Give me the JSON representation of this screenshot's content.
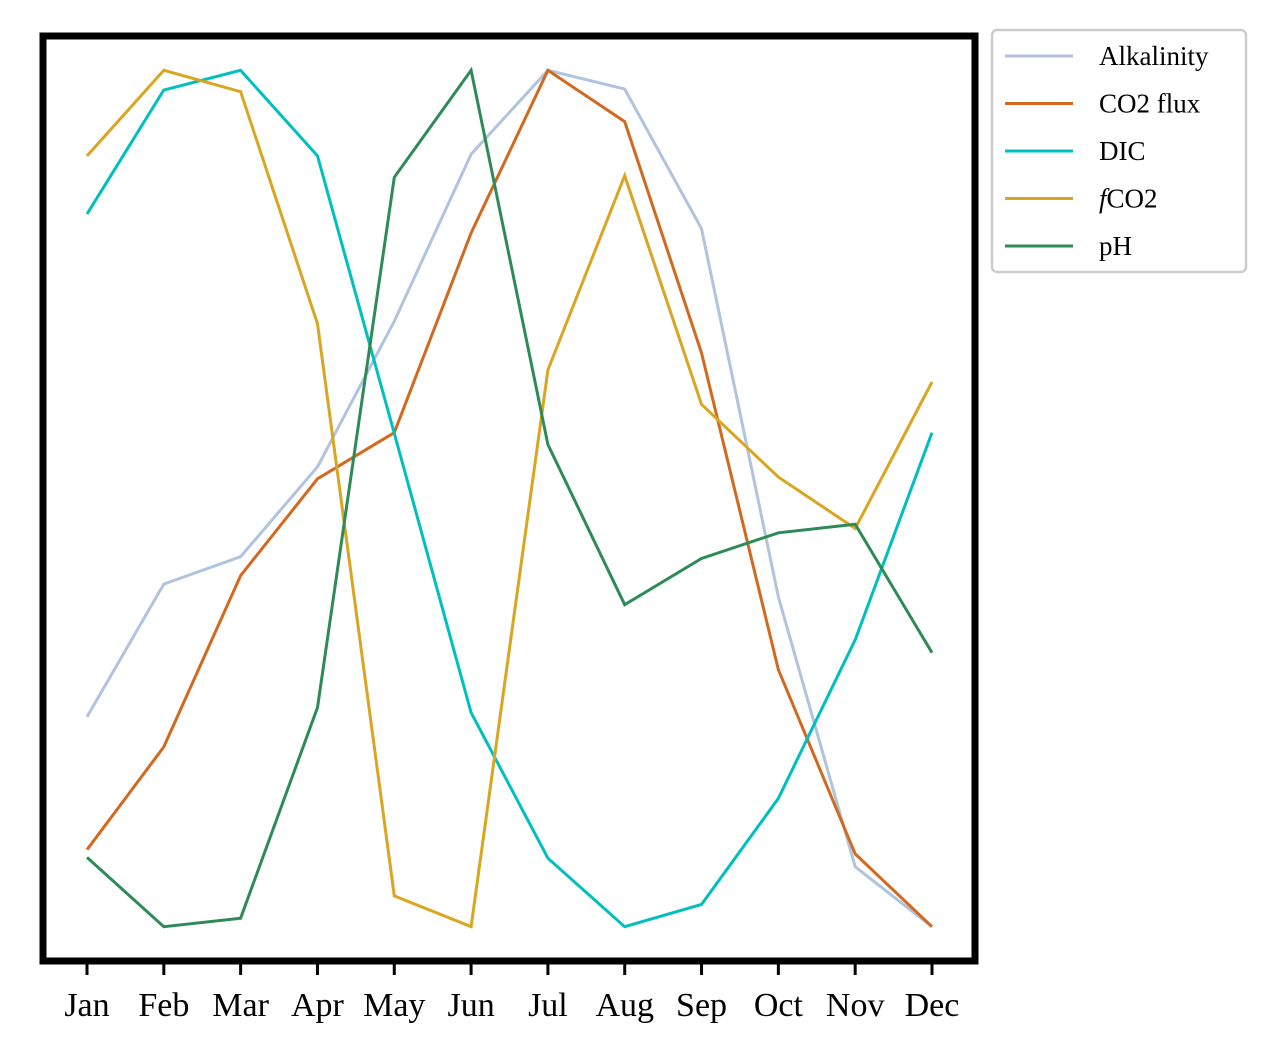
{
  "chart_data": {
    "type": "line",
    "categories": [
      "Jan",
      "Feb",
      "Mar",
      "Apr",
      "May",
      "Jun",
      "Jul",
      "Aug",
      "Sep",
      "Oct",
      "Nov",
      "Dec"
    ],
    "y_axis": {
      "ticks_shown": false,
      "ylim": [
        -0.04,
        1.04
      ]
    },
    "grid": false,
    "legend": {
      "placement": "outside-top-right"
    },
    "series": [
      {
        "name": "Alkalinity",
        "color": "#b0c4de",
        "values": [
          0.245,
          0.4,
          0.432,
          0.537,
          0.707,
          0.902,
          1.0,
          0.978,
          0.815,
          0.385,
          0.07,
          0.0
        ]
      },
      {
        "name": "CO2 flux",
        "color": "#d2691e",
        "values": [
          0.09,
          0.21,
          0.41,
          0.523,
          0.577,
          0.81,
          1.0,
          0.94,
          0.67,
          0.3,
          0.085,
          0.0
        ]
      },
      {
        "name": "DIC",
        "color": "#00bfbf",
        "values": [
          0.832,
          0.977,
          1.0,
          0.9,
          0.576,
          0.25,
          0.08,
          0.0,
          0.026,
          0.15,
          0.335,
          0.577
        ]
      },
      {
        "name": "fCO2",
        "name_italic_prefix": "f",
        "name_rest": "CO2",
        "color": "#daa520",
        "values": [
          0.9,
          1.0,
          0.975,
          0.704,
          0.036,
          0.0,
          0.65,
          0.877,
          0.61,
          0.525,
          0.465,
          0.636
        ]
      },
      {
        "name": "pH",
        "color": "#2e8b57",
        "values": [
          0.081,
          0.0,
          0.01,
          0.256,
          0.875,
          1.0,
          0.563,
          0.376,
          0.43,
          0.46,
          0.47,
          0.32
        ]
      }
    ]
  }
}
